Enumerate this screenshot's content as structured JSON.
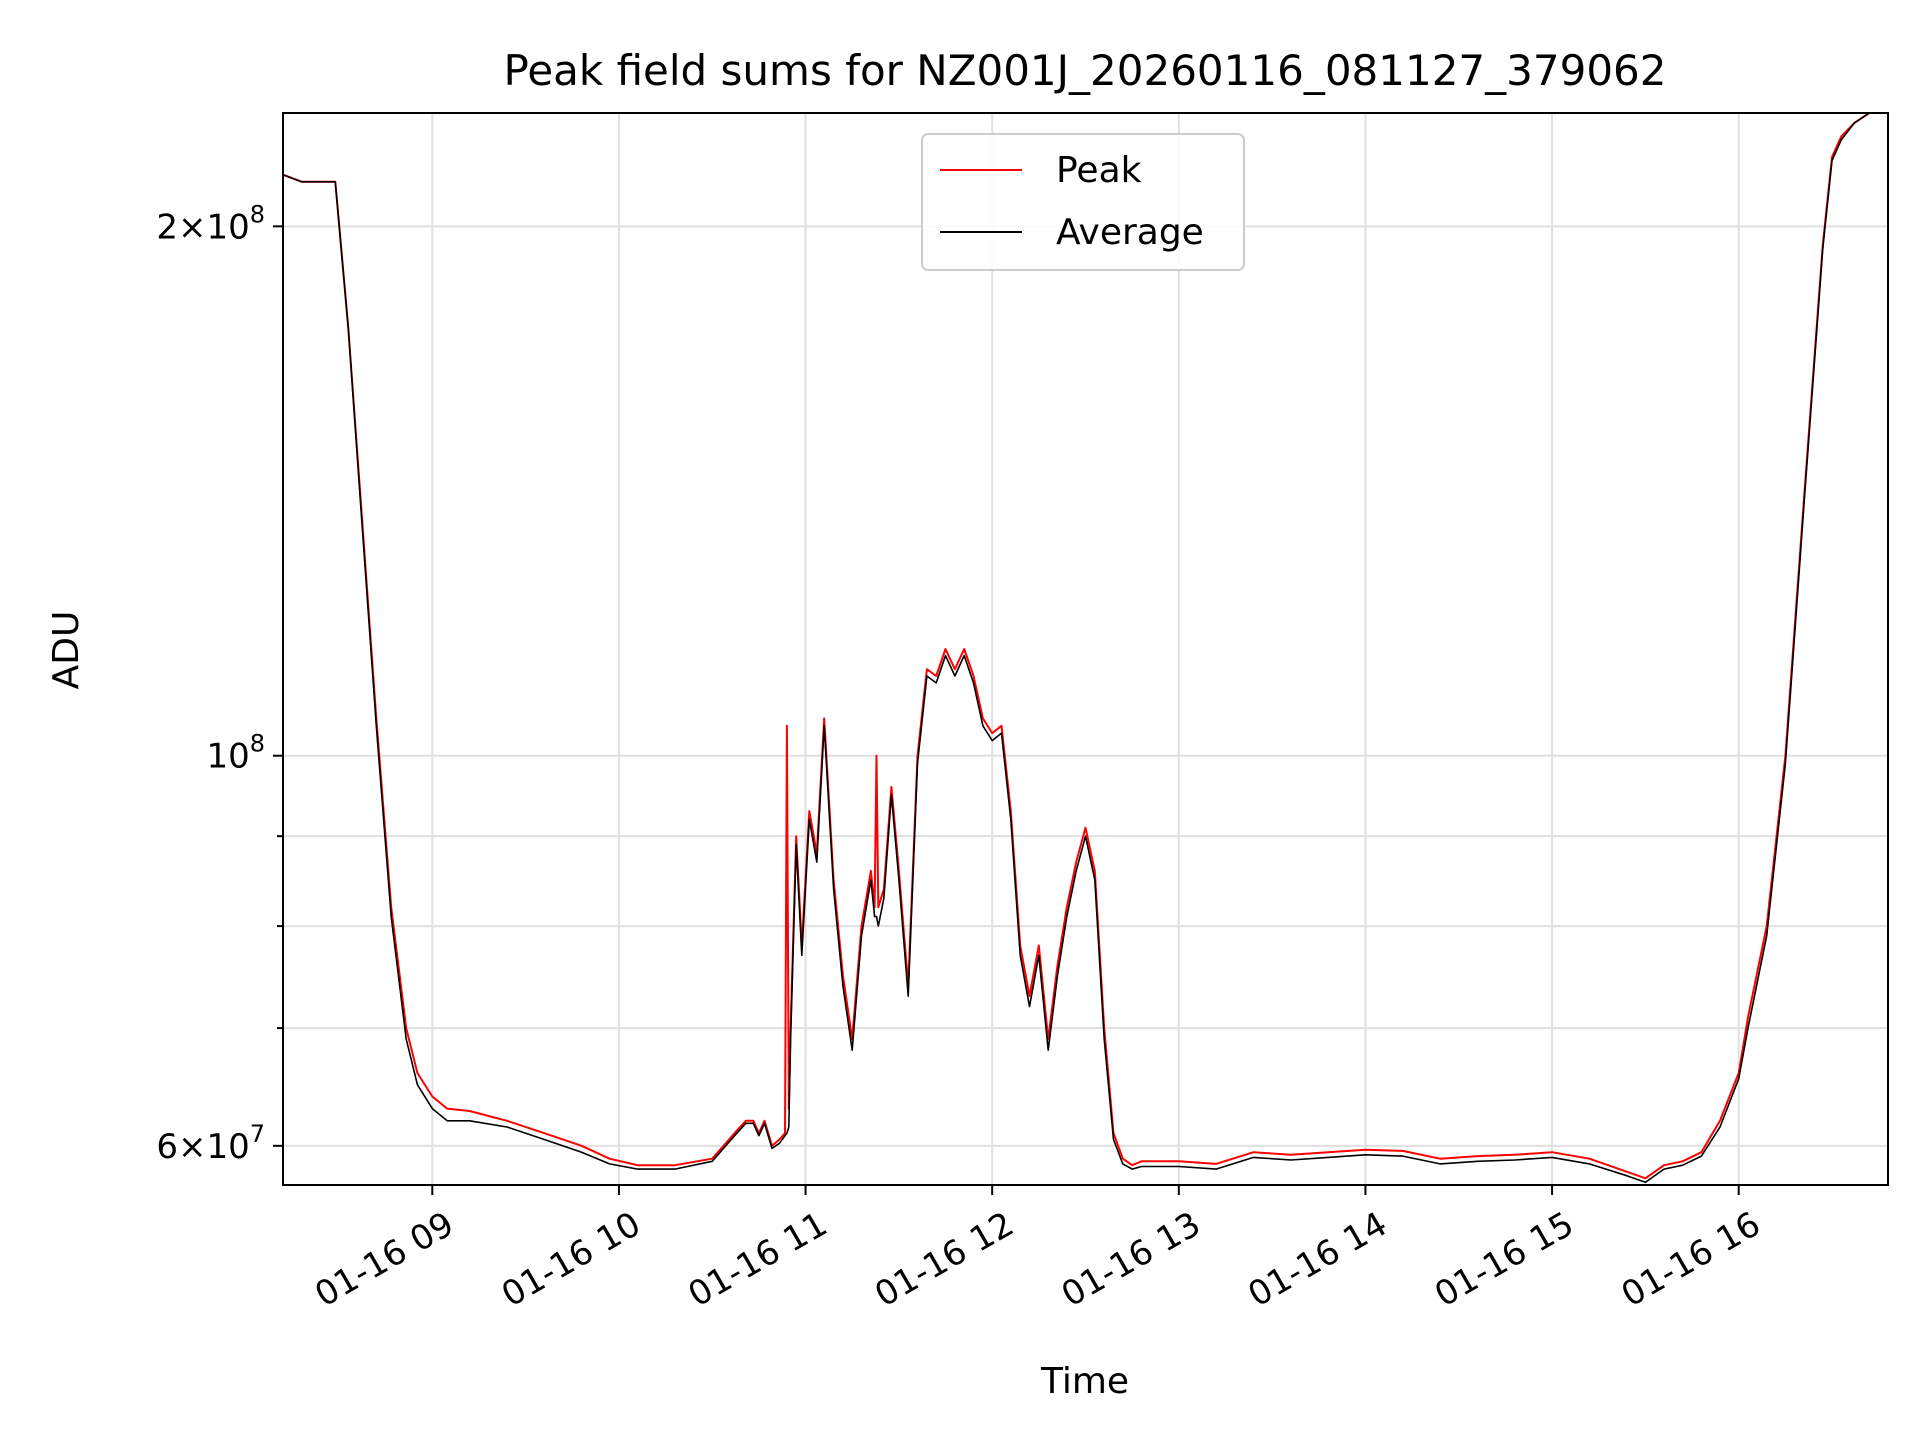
{
  "chart_data": {
    "type": "line",
    "title": "Peak field sums for NZ001J_20260116_081127_379062",
    "xlabel": "Time",
    "ylabel": "ADU",
    "yscale": "log",
    "xlim": [
      8.2,
      16.8
    ],
    "ylim": [
      57000000,
      232000000
    ],
    "grid": true,
    "legend_position": "top-center",
    "x_ticks": [
      {
        "value": 9,
        "label": "01-16 09"
      },
      {
        "value": 10,
        "label": "01-16 10"
      },
      {
        "value": 11,
        "label": "01-16 11"
      },
      {
        "value": 12,
        "label": "01-16 12"
      },
      {
        "value": 13,
        "label": "01-16 13"
      },
      {
        "value": 14,
        "label": "01-16 14"
      },
      {
        "value": 15,
        "label": "01-16 15"
      },
      {
        "value": 16,
        "label": "01-16 16"
      }
    ],
    "y_major_ticks": [
      {
        "value": 60000000,
        "mantissa": "6",
        "exp": "7"
      },
      {
        "value": 100000000,
        "mantissa": "",
        "exp": "8"
      },
      {
        "value": 200000000,
        "mantissa": "2",
        "exp": "8"
      }
    ],
    "y_minor_ticks": [
      70000000,
      80000000,
      90000000
    ],
    "series": [
      {
        "name": "Peak",
        "color": "#ff0000",
        "x": [
          8.2,
          8.3,
          8.4,
          8.48,
          8.55,
          8.62,
          8.7,
          8.78,
          8.86,
          8.92,
          9.0,
          9.08,
          9.2,
          9.4,
          9.6,
          9.8,
          9.95,
          10.1,
          10.3,
          10.5,
          10.62,
          10.68,
          10.72,
          10.75,
          10.78,
          10.82,
          10.86,
          10.89,
          10.9,
          10.91,
          10.92,
          10.95,
          10.98,
          11.02,
          11.06,
          11.1,
          11.15,
          11.2,
          11.25,
          11.3,
          11.35,
          11.37,
          11.38,
          11.39,
          11.42,
          11.46,
          11.5,
          11.55,
          11.6,
          11.65,
          11.7,
          11.75,
          11.8,
          11.85,
          11.9,
          11.95,
          12.0,
          12.05,
          12.1,
          12.15,
          12.2,
          12.25,
          12.3,
          12.35,
          12.4,
          12.45,
          12.5,
          12.55,
          12.6,
          12.65,
          12.7,
          12.75,
          12.8,
          13.0,
          13.2,
          13.4,
          13.6,
          13.8,
          14.0,
          14.2,
          14.4,
          14.6,
          14.8,
          15.0,
          15.2,
          15.4,
          15.5,
          15.6,
          15.7,
          15.8,
          15.9,
          16.0,
          16.05,
          16.15,
          16.25,
          16.35,
          16.45,
          16.5,
          16.55,
          16.62,
          16.7,
          16.8
        ],
        "values": [
          214000000,
          212000000,
          212000000,
          212000000,
          175000000,
          138000000,
          105000000,
          82000000,
          70000000,
          66000000,
          64000000,
          63000000,
          62800000,
          62000000,
          61000000,
          60000000,
          59000000,
          58500000,
          58500000,
          59000000,
          61000000,
          62000000,
          62000000,
          61000000,
          62000000,
          60000000,
          60500000,
          61000000,
          104000000,
          63000000,
          70000000,
          90000000,
          78000000,
          93000000,
          88000000,
          105000000,
          85000000,
          75000000,
          69000000,
          80000000,
          86000000,
          82000000,
          100000000,
          82000000,
          84000000,
          96000000,
          86000000,
          74000000,
          100000000,
          112000000,
          111000000,
          115000000,
          112000000,
          115000000,
          111000000,
          105000000,
          103000000,
          104000000,
          93000000,
          78000000,
          73000000,
          78000000,
          69000000,
          76000000,
          82000000,
          87000000,
          91000000,
          86000000,
          70000000,
          61000000,
          59000000,
          58500000,
          58800000,
          58800000,
          58600000,
          59500000,
          59300000,
          59500000,
          59700000,
          59600000,
          59000000,
          59200000,
          59300000,
          59500000,
          59000000,
          58000000,
          57500000,
          58500000,
          58800000,
          59500000,
          62000000,
          66000000,
          71000000,
          80000000,
          100000000,
          140000000,
          195000000,
          219000000,
          225000000,
          229000000,
          232000000,
          232000000
        ]
      },
      {
        "name": "Average",
        "color": "#000000",
        "x": [
          8.2,
          8.3,
          8.4,
          8.48,
          8.55,
          8.62,
          8.7,
          8.78,
          8.86,
          8.92,
          9.0,
          9.08,
          9.2,
          9.4,
          9.6,
          9.8,
          9.95,
          10.1,
          10.3,
          10.5,
          10.62,
          10.68,
          10.72,
          10.75,
          10.78,
          10.82,
          10.86,
          10.89,
          10.9,
          10.91,
          10.92,
          10.95,
          10.98,
          11.02,
          11.06,
          11.1,
          11.15,
          11.2,
          11.25,
          11.3,
          11.35,
          11.37,
          11.38,
          11.39,
          11.42,
          11.46,
          11.5,
          11.55,
          11.6,
          11.65,
          11.7,
          11.75,
          11.8,
          11.85,
          11.9,
          11.95,
          12.0,
          12.05,
          12.1,
          12.15,
          12.2,
          12.25,
          12.3,
          12.35,
          12.4,
          12.45,
          12.5,
          12.55,
          12.6,
          12.65,
          12.7,
          12.75,
          12.8,
          13.0,
          13.2,
          13.4,
          13.6,
          13.8,
          14.0,
          14.2,
          14.4,
          14.6,
          14.8,
          15.0,
          15.2,
          15.4,
          15.5,
          15.6,
          15.7,
          15.8,
          15.9,
          16.0,
          16.05,
          16.15,
          16.25,
          16.35,
          16.45,
          16.5,
          16.55,
          16.62,
          16.7,
          16.8
        ],
        "values": [
          214000000,
          212000000,
          212000000,
          212000000,
          175000000,
          137000000,
          104000000,
          81000000,
          69000000,
          65000000,
          63000000,
          62000000,
          62000000,
          61500000,
          60500000,
          59500000,
          58600000,
          58200000,
          58200000,
          58800000,
          60800000,
          61800000,
          61800000,
          60800000,
          61800000,
          59800000,
          60200000,
          60800000,
          61000000,
          61500000,
          69000000,
          89000000,
          77000000,
          92000000,
          87000000,
          104000000,
          84000000,
          74000000,
          68000000,
          79000000,
          85000000,
          81000000,
          81000000,
          80000000,
          83000000,
          95000000,
          85000000,
          73000000,
          99000000,
          111000000,
          110000000,
          114000000,
          111000000,
          114000000,
          110000000,
          104000000,
          102000000,
          103000000,
          92000000,
          77000000,
          72000000,
          77000000,
          68000000,
          75000000,
          81000000,
          86000000,
          90000000,
          85000000,
          69000000,
          60500000,
          58600000,
          58200000,
          58400000,
          58400000,
          58200000,
          59100000,
          58900000,
          59100000,
          59300000,
          59200000,
          58600000,
          58800000,
          58900000,
          59100000,
          58600000,
          57700000,
          57200000,
          58200000,
          58500000,
          59200000,
          61500000,
          65500000,
          70000000,
          79000000,
          99000000,
          139000000,
          194000000,
          218000000,
          224000000,
          229000000,
          232000000,
          232000000
        ]
      }
    ]
  }
}
